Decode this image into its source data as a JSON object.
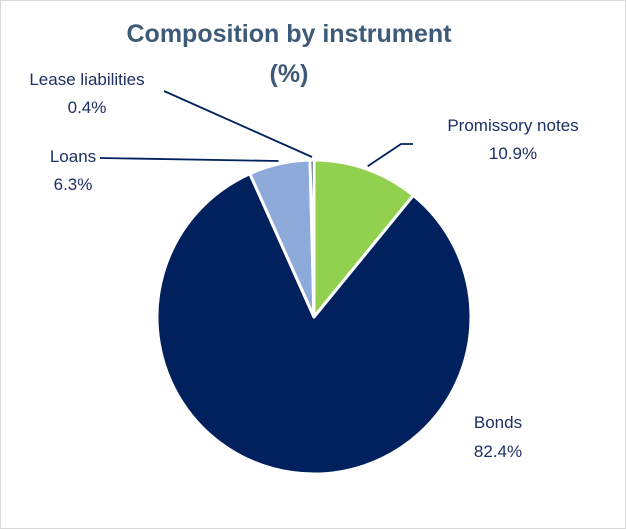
{
  "chart_data": {
    "type": "pie",
    "title_line1": "Composition by instrument",
    "title_line2": "(%)",
    "slices": [
      {
        "name": "Promissory notes",
        "value": 10.9,
        "value_label": "10.9%",
        "color": "#92d050"
      },
      {
        "name": "Bonds",
        "value": 82.4,
        "value_label": "82.4%",
        "color": "#00215e"
      },
      {
        "name": "Loans",
        "value": 6.3,
        "value_label": "6.3%",
        "color": "#8eaadb"
      },
      {
        "name": "Lease liabilities",
        "value": 0.4,
        "value_label": "0.4%",
        "color": "#00215e"
      }
    ],
    "start_angle": "12 o'clock",
    "direction": "clockwise",
    "slice_border_color": "#ffffff",
    "label_color": "#1d2f63",
    "leader_line_color": "#00215e",
    "title_color": "#3d5a78"
  }
}
